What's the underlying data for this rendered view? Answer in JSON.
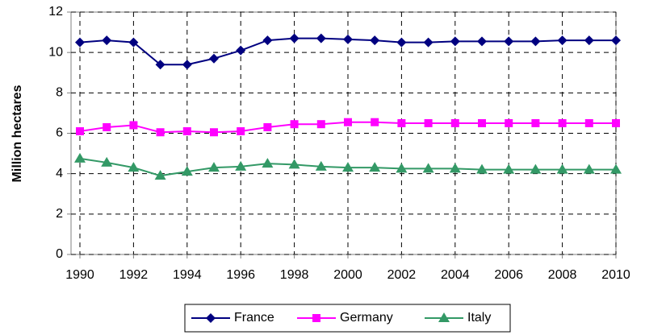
{
  "chart_data": {
    "type": "line",
    "y_label": "Million hectares",
    "x": [
      1990,
      1991,
      1992,
      1993,
      1994,
      1995,
      1996,
      1997,
      1998,
      1999,
      2000,
      2001,
      2002,
      2003,
      2004,
      2005,
      2006,
      2007,
      2008,
      2009,
      2010
    ],
    "series": [
      {
        "name": "France",
        "color": "#000080",
        "marker": "diamond",
        "values": [
          10.5,
          10.6,
          10.5,
          9.4,
          9.4,
          9.7,
          10.1,
          10.6,
          10.7,
          10.7,
          10.65,
          10.6,
          10.5,
          10.5,
          10.55,
          10.55,
          10.55,
          10.55,
          10.6,
          10.6,
          10.6
        ]
      },
      {
        "name": "Germany",
        "color": "#ff00ff",
        "marker": "square",
        "values": [
          6.1,
          6.3,
          6.4,
          6.05,
          6.1,
          6.05,
          6.1,
          6.3,
          6.45,
          6.45,
          6.55,
          6.55,
          6.5,
          6.5,
          6.5,
          6.5,
          6.5,
          6.5,
          6.5,
          6.5,
          6.5
        ]
      },
      {
        "name": "Italy",
        "color": "#339966",
        "marker": "triangle",
        "values": [
          4.75,
          4.55,
          4.3,
          3.9,
          4.1,
          4.3,
          4.35,
          4.5,
          4.45,
          4.35,
          4.3,
          4.3,
          4.25,
          4.25,
          4.25,
          4.2,
          4.2,
          4.2,
          4.2,
          4.2,
          4.2
        ]
      }
    ],
    "xlim": [
      1990,
      2010
    ],
    "xticks": [
      1990,
      1992,
      1994,
      1996,
      1998,
      2000,
      2002,
      2004,
      2006,
      2008,
      2010
    ],
    "ylim": [
      0,
      12
    ],
    "yticks": [
      0,
      2,
      4,
      6,
      8,
      10,
      12
    ],
    "grid": true,
    "legend": "bottom"
  }
}
